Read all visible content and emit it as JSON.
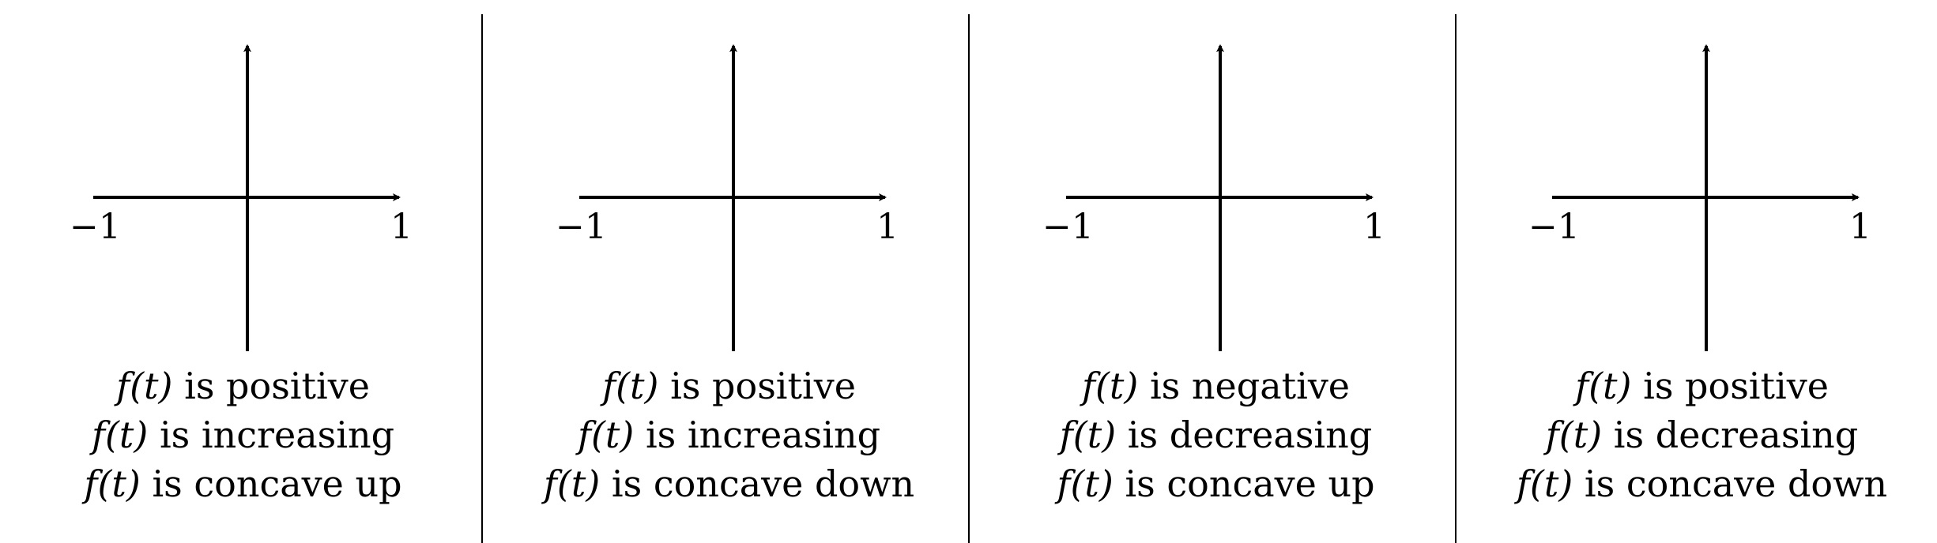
{
  "axis": {
    "x_min_label": "−1",
    "x_max_label": "1"
  },
  "panels": [
    {
      "lines": [
        {
          "fn": "f(t)",
          "text": " is positive"
        },
        {
          "fn": "f(t)",
          "text": " is increasing"
        },
        {
          "fn": "f(t)",
          "text": " is concave up"
        }
      ]
    },
    {
      "lines": [
        {
          "fn": "f(t)",
          "text": " is positive"
        },
        {
          "fn": "f(t)",
          "text": " is increasing"
        },
        {
          "fn": "f(t)",
          "text": " is concave down"
        }
      ]
    },
    {
      "lines": [
        {
          "fn": "f(t)",
          "text": " is negative"
        },
        {
          "fn": "f(t)",
          "text": " is decreasing"
        },
        {
          "fn": "f(t)",
          "text": " is concave up"
        }
      ]
    },
    {
      "lines": [
        {
          "fn": "f(t)",
          "text": " is positive"
        },
        {
          "fn": "f(t)",
          "text": " is decreasing"
        },
        {
          "fn": "f(t)",
          "text": " is concave down"
        }
      ]
    }
  ]
}
